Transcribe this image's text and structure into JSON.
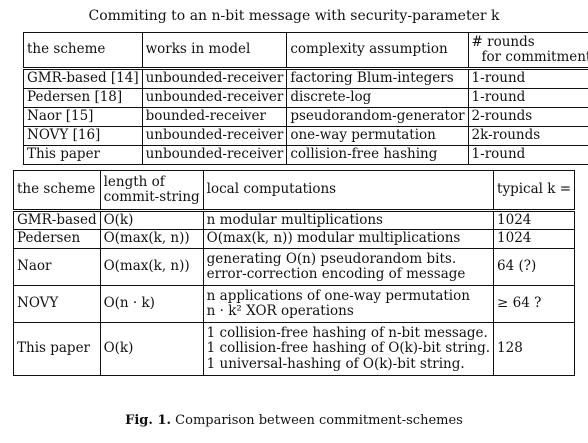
{
  "caption_top": "Commiting to an n-bit message with security-parameter k",
  "table1": {
    "headers": [
      "the scheme",
      "works in model",
      "complexity assumption",
      "# rounds",
      "for commitment"
    ],
    "rows": [
      [
        "GMR-based [14]",
        "unbounded-receiver",
        "factoring Blum-integers",
        "1-round"
      ],
      [
        "Pedersen [18]",
        "unbounded-receiver",
        "discrete-log",
        "1-round"
      ],
      [
        "Naor [15]",
        "bounded-receiver",
        "pseudorandom-generator",
        "2-rounds"
      ],
      [
        "NOVY [16]",
        "unbounded-receiver",
        "one-way permutation",
        "2k-rounds"
      ],
      [
        "This paper",
        "unbounded-receiver",
        "collision-free hashing",
        "1-round"
      ]
    ]
  },
  "table2": {
    "headers": [
      "the scheme",
      "length of",
      "commit-string",
      "local computations",
      "typical k ="
    ],
    "rows": [
      {
        "scheme": "GMR-based",
        "length": "O(k)",
        "comp": [
          "n modular multiplications"
        ],
        "typical": "1024"
      },
      {
        "scheme": "Pedersen",
        "length": "O(max(k, n))",
        "comp": [
          "O(max(k, n)) modular multiplications"
        ],
        "typical": "1024"
      },
      {
        "scheme": "Naor",
        "length": "O(max(k, n))",
        "comp": [
          "generating O(n) pseudorandom bits.",
          "error-correction encoding of message"
        ],
        "typical": "64 (?)"
      },
      {
        "scheme": "NOVY",
        "length": "O(n · k)",
        "comp": [
          "n applications of one-way permutation",
          "n · k² XOR operations"
        ],
        "typical": "≥ 64 ?"
      },
      {
        "scheme": "This paper",
        "length": "O(k)",
        "comp": [
          "1 collision-free hashing of n-bit message.",
          "1 collision-free hashing of O(k)-bit string.",
          "1 universal-hashing of O(k)-bit string."
        ],
        "typical": "128"
      }
    ]
  },
  "caption_bottom": {
    "label": "Fig. 1.",
    "text": "Comparison between commitment-schemes"
  }
}
